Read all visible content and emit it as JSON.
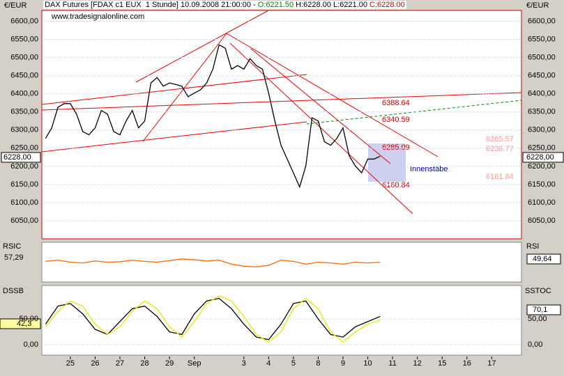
{
  "header": {
    "title": "DAX Futures [FDAX c1 EUX  1 Stunde] 10.09.2008 21:00:00 -",
    "open": "O:6221.50",
    "high": "H:6228.00",
    "low": "L:6221.00",
    "close": "C:6228.00",
    "source": "www.tradesignalonline.com",
    "currency_left": "€/EUR",
    "currency_right": "€/EUR",
    "last_price": "6228,00"
  },
  "annotations": [
    "6388.64",
    "6340.59",
    "6265.57",
    "6236.77",
    "6285.09",
    "6161.84",
    "6160.84",
    "Innenstäbe"
  ],
  "panels": {
    "rsi_name": "RSIC",
    "rsi_value": "57,29",
    "rsi_right": "RSI",
    "rsi_right_value": "49,64",
    "dssb_name": "DSSB",
    "dssb_value": "42,3",
    "dssb_right": "SSTOC",
    "dssb_right_value": "70,1"
  },
  "chart_data": [
    {
      "type": "line",
      "xlim": [
        -1.15,
        18.2
      ],
      "ylim": [
        6000,
        6630
      ],
      "yticks": [
        {
          "value": 6050,
          "label": "6050,00"
        },
        {
          "value": 6100,
          "label": "6100,00"
        },
        {
          "value": 6150,
          "label": "6150,00"
        },
        {
          "value": 6200,
          "label": "6200,00"
        },
        {
          "value": 6250,
          "label": "6250,00"
        },
        {
          "value": 6300,
          "label": "6300,00"
        },
        {
          "value": 6350,
          "label": "6350,00"
        },
        {
          "value": 6400,
          "label": "6400,00"
        },
        {
          "value": 6450,
          "label": "6450,00"
        },
        {
          "value": 6500,
          "label": "6500,00"
        },
        {
          "value": 6550,
          "label": "6550,00"
        },
        {
          "value": 6600,
          "label": "6600,00"
        }
      ],
      "xticks": [
        {
          "value": 0,
          "label": "25"
        },
        {
          "value": 1,
          "label": "26"
        },
        {
          "value": 2,
          "label": "27"
        },
        {
          "value": 3,
          "label": "28"
        },
        {
          "value": 4,
          "label": "29"
        },
        {
          "value": 5,
          "label": "Sep"
        },
        {
          "value": 7,
          "label": "3"
        },
        {
          "value": 8,
          "label": "4"
        },
        {
          "value": 9,
          "label": "5"
        },
        {
          "value": 10,
          "label": "8"
        },
        {
          "value": 11,
          "label": "9"
        },
        {
          "value": 12,
          "label": "10"
        },
        {
          "value": 13,
          "label": "11"
        },
        {
          "value": 14,
          "label": "12"
        },
        {
          "value": 15,
          "label": "15"
        },
        {
          "value": 16,
          "label": "16"
        },
        {
          "value": 17,
          "label": "17"
        }
      ],
      "x": [
        -1,
        -0.75,
        -0.5,
        -0.25,
        0,
        0.25,
        0.5,
        0.75,
        1,
        1.25,
        1.5,
        1.75,
        2,
        2.25,
        2.5,
        2.75,
        3,
        3.25,
        3.5,
        3.75,
        4,
        4.25,
        4.5,
        4.75,
        5,
        5.25,
        5.5,
        5.75,
        6,
        6.25,
        6.5,
        6.75,
        7,
        7.25,
        7.5,
        7.75,
        8,
        8.25,
        8.5,
        8.75,
        9,
        9.25,
        9.5,
        9.75,
        10,
        10.25,
        10.5,
        10.75,
        11,
        11.25,
        11.5,
        11.75,
        12,
        12.25,
        12.5
      ],
      "series": [
        {
          "color": "#000000",
          "values": [
            6277,
            6306,
            6363,
            6373,
            6373,
            6344,
            6296,
            6287,
            6306,
            6354,
            6344,
            6296,
            6287,
            6325,
            6354,
            6306,
            6325,
            6430,
            6445,
            6421,
            6430,
            6426,
            6421,
            6392,
            6402,
            6411,
            6430,
            6468,
            6535,
            6526,
            6468,
            6478,
            6468,
            6497,
            6478,
            6468,
            6402,
            6325,
            6258,
            6220,
            6182,
            6143,
            6201,
            6334,
            6325,
            6268,
            6258,
            6277,
            6306,
            6229,
            6201,
            6182,
            6220,
            6220,
            6228
          ]
        }
      ]
    },
    {
      "type": "line",
      "xlim": [
        -1.15,
        18.2
      ],
      "ylim": [
        0,
        100
      ],
      "x": [
        -1,
        -0.5,
        0,
        0.5,
        1,
        1.5,
        2,
        2.5,
        3,
        3.5,
        4,
        4.5,
        5,
        5.5,
        6,
        6.5,
        7,
        7.5,
        8,
        8.5,
        9,
        9.5,
        10,
        10.5,
        11,
        11.5,
        12,
        12.5
      ],
      "series": [
        {
          "color": "#ff6600",
          "values": [
            52,
            55,
            50,
            48,
            53,
            50,
            51,
            55,
            52,
            50,
            54,
            58,
            56,
            53,
            55,
            45,
            40,
            38,
            42,
            55,
            52,
            45,
            50,
            48,
            45,
            50,
            48,
            50
          ]
        }
      ]
    },
    {
      "type": "line",
      "xlim": [
        -1.15,
        18.2
      ],
      "ylim": [
        -20,
        115
      ],
      "yticks": [
        {
          "value": 0,
          "label": "0,00"
        },
        {
          "value": 50,
          "label": "50,00"
        }
      ],
      "x": [
        -1,
        -0.5,
        0,
        0.5,
        1,
        1.5,
        2,
        2.5,
        3,
        3.5,
        4,
        4.5,
        5,
        5.5,
        6,
        6.5,
        7,
        7.5,
        8,
        8.5,
        9,
        9.5,
        10,
        10.5,
        11,
        11.5,
        12,
        12.5
      ],
      "series": [
        {
          "color": "#000000",
          "values": [
            40,
            75,
            80,
            60,
            30,
            20,
            45,
            70,
            75,
            55,
            25,
            20,
            60,
            85,
            90,
            70,
            40,
            15,
            10,
            40,
            80,
            85,
            50,
            20,
            15,
            35,
            45,
            55
          ]
        },
        {
          "color": "#e8e800",
          "values": [
            35,
            65,
            85,
            75,
            40,
            20,
            35,
            65,
            85,
            70,
            35,
            15,
            45,
            80,
            95,
            85,
            55,
            20,
            5,
            25,
            70,
            90,
            70,
            25,
            5,
            25,
            40,
            48
          ]
        }
      ]
    }
  ]
}
